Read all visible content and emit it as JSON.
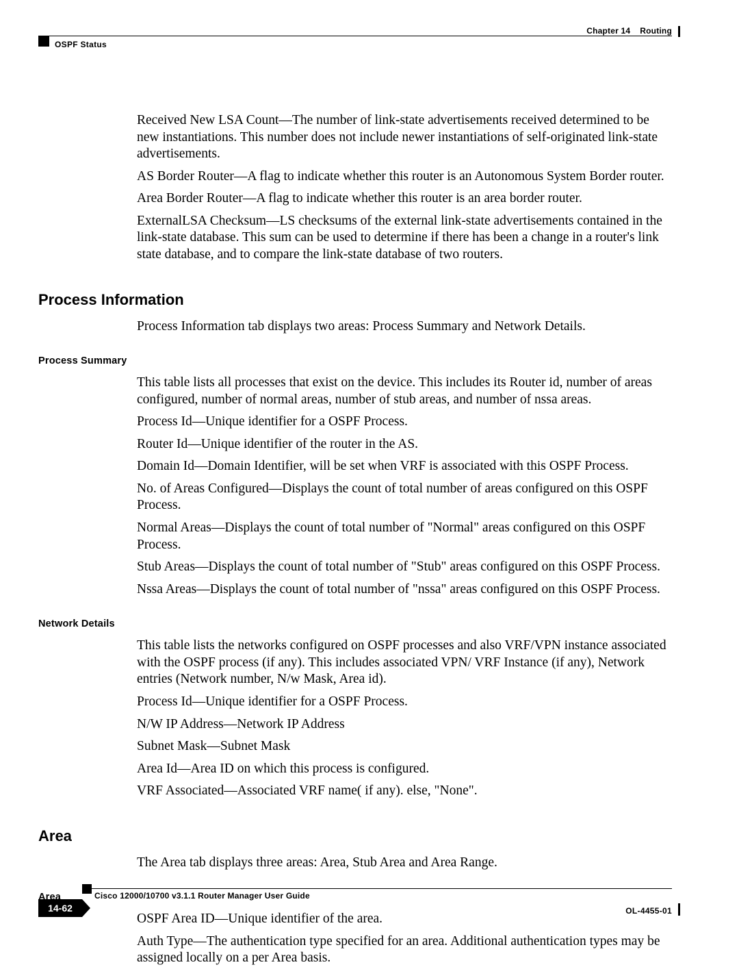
{
  "header": {
    "chapter_label": "Chapter 14",
    "chapter_title": "Routing",
    "section": "OSPF Status"
  },
  "intro_paragraphs": [
    "Received New LSA Count—The number of link-state advertisements received determined to be new instantiations. This number does not include newer instantiations of self-originated link-state advertisements.",
    "AS Border Router—A flag to indicate whether this router is an Autonomous System Border router.",
    "Area Border Router—A flag to indicate whether this router is an area border router.",
    "ExternalLSA Checksum—LS checksums of the external link-state advertisements contained in the link-state database. This sum can be used to determine if there has been a change in a router's link state database, and to compare the link-state database of two routers."
  ],
  "process_info": {
    "heading": "Process Information",
    "intro": "Process Information tab displays two areas: Process Summary and Network Details.",
    "summary_heading": "Process Summary",
    "summary_paragraphs": [
      "This table lists all processes that exist on the device. This includes its Router id, number of areas configured, number of normal areas,  number of stub areas, and number of nssa areas.",
      "Process Id—Unique identifier for a OSPF Process.",
      "Router Id—Unique identifier of the router in the AS.",
      "Domain Id—Domain Identifier, will be set when VRF is associated with this OSPF Process.",
      "No. of Areas Configured—Displays the count of total number of areas configured on this OSPF Process.",
      "Normal Areas—Displays the count of total number of \"Normal\" areas configured on this OSPF Process.",
      "Stub Areas—Displays the count of total number of \"Stub\" areas configured on this OSPF Process.",
      "Nssa Areas—Displays the count of total number of \"nssa\" areas configured on this OSPF Process."
    ],
    "network_heading": "Network Details",
    "network_paragraphs": [
      "This table lists the networks configured on OSPF processes and also VRF/VPN instance associated with the OSPF process (if any). This includes associated VPN/ VRF Instance (if any), Network entries (Network number, N/w Mask, Area id).",
      "Process Id—Unique identifier for a OSPF Process.",
      "N/W IP Address—Network IP Address",
      "Subnet Mask—Subnet Mask",
      "Area Id—Area ID on which this process is configured.",
      "VRF Associated—Associated VRF name( if any). else, \"None\"."
    ]
  },
  "area": {
    "heading": "Area",
    "intro": "The Area tab displays three areas: Area, Stub Area and Area Range.",
    "sub_heading": "Area",
    "paragraphs": [
      "OSPF Area ID—Unique identifier of the area.",
      "Auth Type—The authentication type specified for an area. Additional authentication types may be assigned locally on a per Area basis."
    ]
  },
  "footer": {
    "guide": "Cisco 12000/10700 v3.1.1 Router Manager User Guide",
    "page": "14-62",
    "docnum": "OL-4455-01"
  }
}
